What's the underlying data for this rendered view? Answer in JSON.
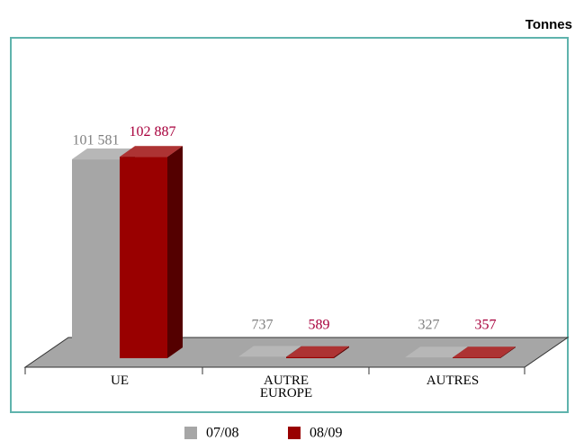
{
  "chart_data": {
    "type": "bar3d",
    "unit_label": "Tonnes",
    "categories": [
      "UE",
      "AUTRE EUROPE",
      "AUTRES"
    ],
    "series": [
      {
        "name": "07/08",
        "color": "#a6a6a6",
        "label_color": "#808080",
        "values": [
          101581,
          737,
          327
        ],
        "value_labels": [
          "101 581",
          "737",
          "327"
        ]
      },
      {
        "name": "08/09",
        "color": "#990000",
        "label_color": "#a8003c",
        "values": [
          102887,
          589,
          357
        ],
        "value_labels": [
          "102 887",
          "589",
          "357"
        ]
      }
    ],
    "ylim": [
      0,
      120000
    ],
    "legend": "bottom"
  }
}
